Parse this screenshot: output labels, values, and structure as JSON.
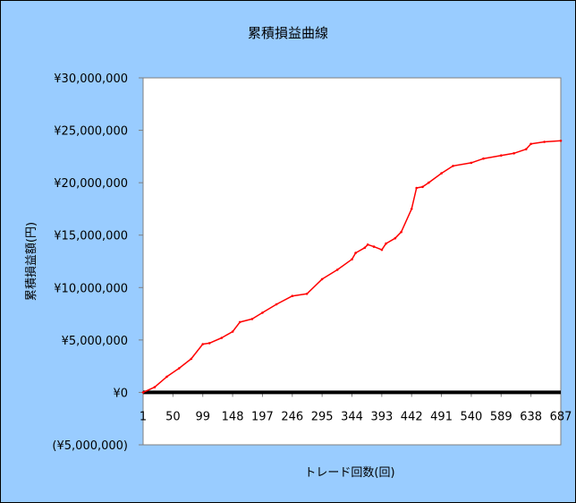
{
  "chart_data": {
    "type": "line",
    "title": "累積損益曲線",
    "xlabel": "トレード回数(回)",
    "ylabel": "累積損益額(円)",
    "ylim": [
      -5000000,
      30000000
    ],
    "y_ticks": [
      -5000000,
      0,
      5000000,
      10000000,
      15000000,
      20000000,
      25000000,
      30000000
    ],
    "y_tick_labels": [
      "(¥5,000,000)",
      "¥0",
      "¥5,000,000",
      "¥10,000,000",
      "¥15,000,000",
      "¥20,000,000",
      "¥25,000,000",
      "¥30,000,000"
    ],
    "x_tick_labels": [
      "1",
      "50",
      "99",
      "148",
      "197",
      "246",
      "295",
      "344",
      "393",
      "442",
      "491",
      "540",
      "589",
      "638",
      "687"
    ],
    "x_range": [
      1,
      687
    ],
    "grid": false,
    "legend": "none",
    "series": [
      {
        "color": "#ff0000",
        "x": [
          1,
          20,
          40,
          60,
          80,
          99,
          110,
          130,
          148,
          160,
          180,
          197,
          220,
          246,
          270,
          295,
          320,
          344,
          350,
          365,
          370,
          380,
          393,
          400,
          415,
          425,
          442,
          450,
          460,
          470,
          491,
          510,
          540,
          560,
          589,
          610,
          630,
          638,
          660,
          687
        ],
        "y": [
          0,
          500000,
          1500000,
          2300000,
          3200000,
          4600000,
          4700000,
          5200000,
          5800000,
          6700000,
          7000000,
          7600000,
          8400000,
          9200000,
          9400000,
          10800000,
          11700000,
          12700000,
          13300000,
          13800000,
          14100000,
          13900000,
          13600000,
          14200000,
          14700000,
          15300000,
          17500000,
          19500000,
          19600000,
          20000000,
          20900000,
          21600000,
          21900000,
          22300000,
          22600000,
          22800000,
          23200000,
          23700000,
          23900000,
          24000000
        ]
      }
    ],
    "zero_line_color": "#000000",
    "negative_label_color": "#cc0000",
    "plot_background": "#ffffff",
    "chart_background": "#99ccff"
  }
}
